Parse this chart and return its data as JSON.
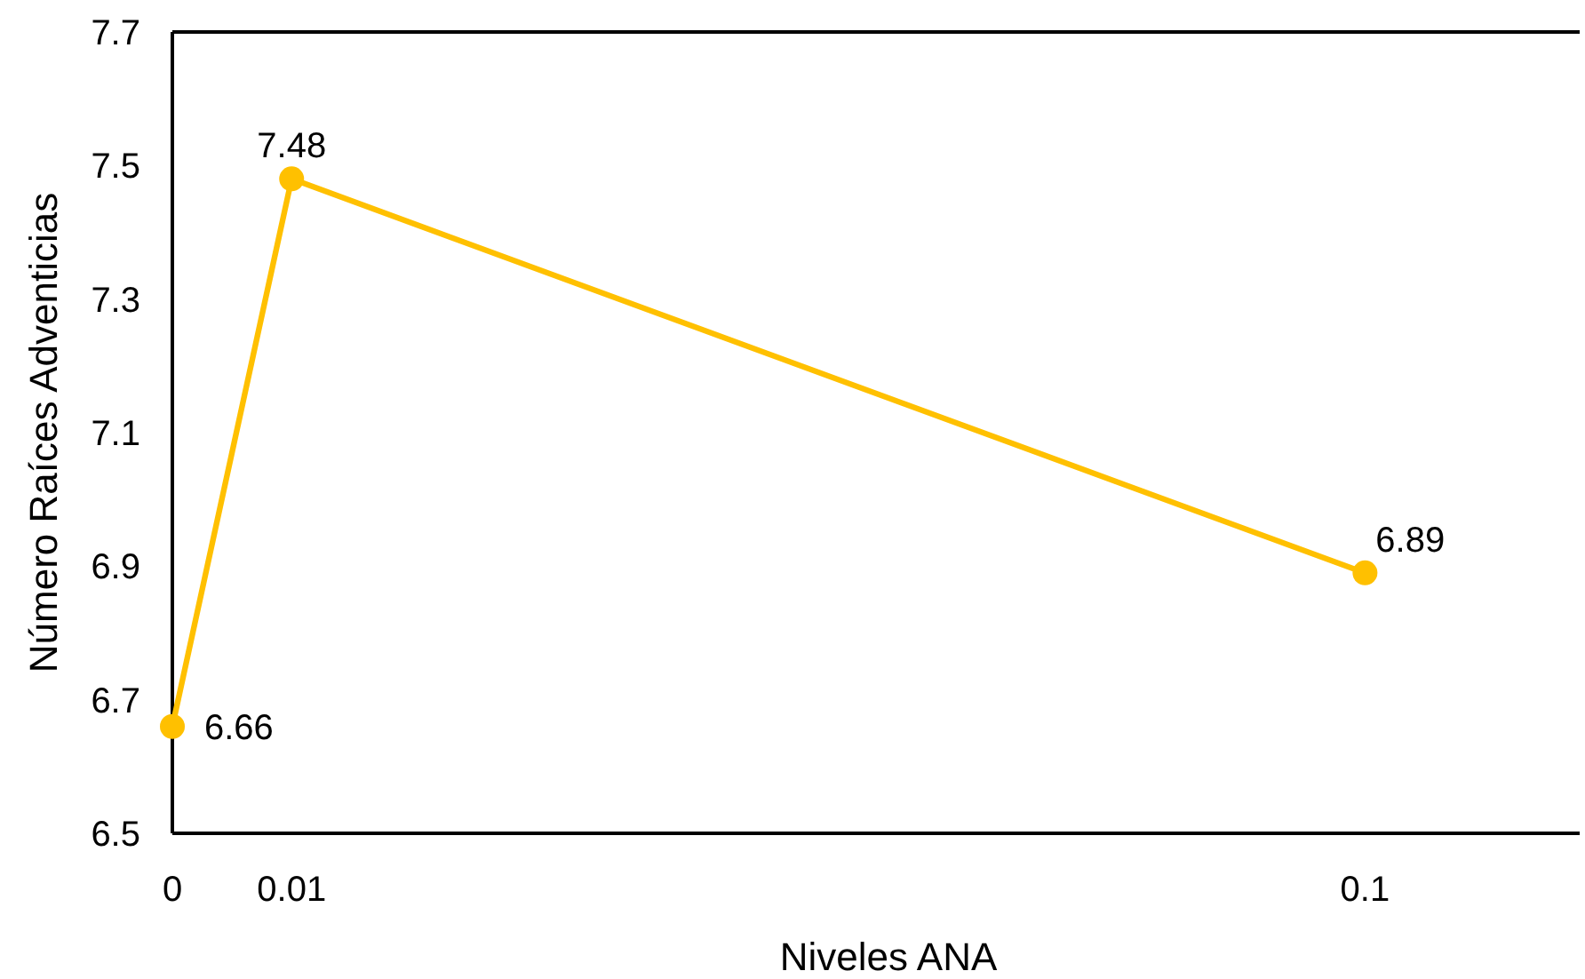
{
  "chart_data": {
    "type": "line",
    "xlabel": "Niveles ANA",
    "ylabel": "Número Raíces Adventicias",
    "x": [
      0,
      0.01,
      0.1
    ],
    "series": [
      {
        "color": "#ffc000",
        "values": [
          6.66,
          7.48,
          6.89
        ]
      }
    ],
    "xlim": [
      0,
      0.118
    ],
    "xticks": [
      0,
      0.01,
      0.1
    ],
    "ylim": [
      6.5,
      7.7
    ],
    "yticks": [
      6.5,
      6.7,
      6.9,
      7.1,
      7.3,
      7.5,
      7.7
    ],
    "marker": "circle",
    "data_labels": true
  }
}
